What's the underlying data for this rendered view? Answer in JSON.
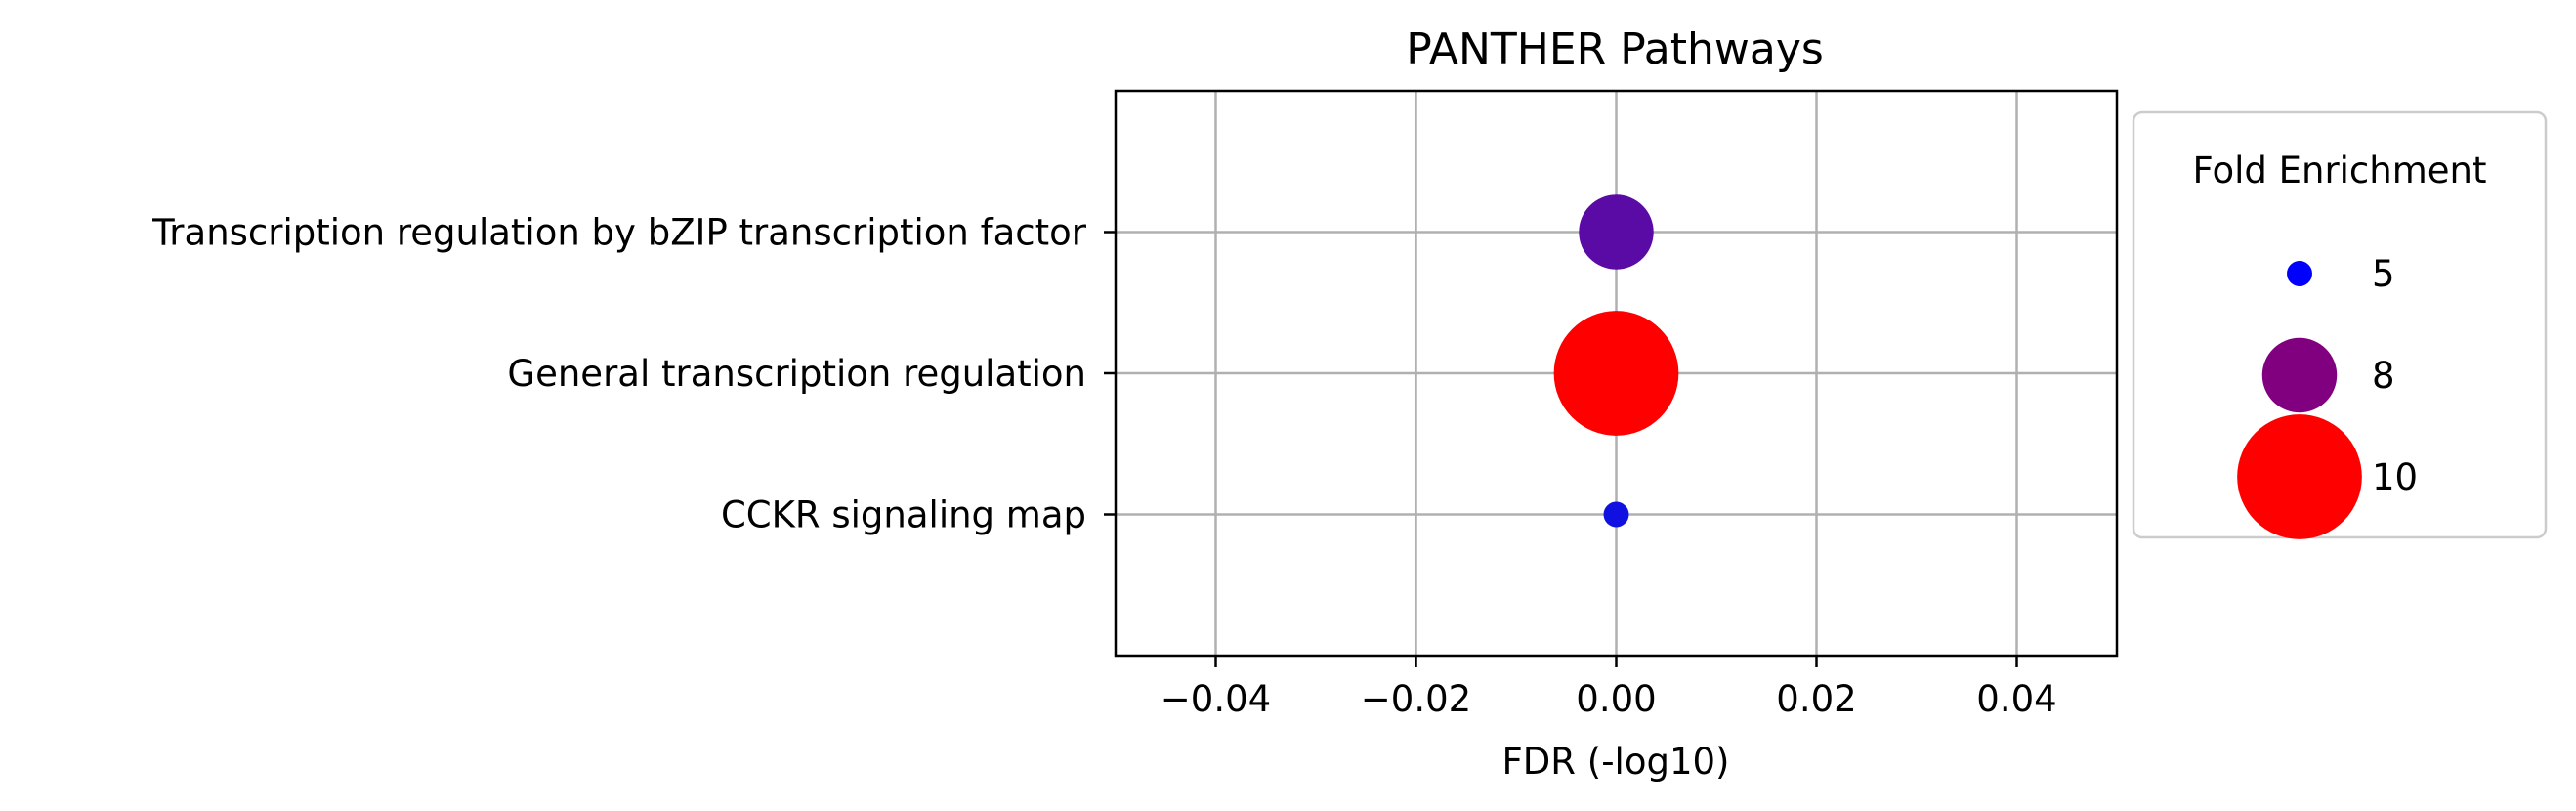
{
  "chart_data": {
    "type": "scatter",
    "title": "PANTHER Pathways",
    "xlabel": "FDR (-log10)",
    "ylabel": "",
    "xlim": [
      -0.05,
      0.05
    ],
    "xticks": [
      -0.04,
      -0.02,
      0.0,
      0.02,
      0.04
    ],
    "xtick_labels": [
      "−0.04",
      "−0.02",
      "0.00",
      "0.02",
      "0.04"
    ],
    "categories": [
      "Transcription regulation by bZIP transcription factor",
      "General transcription regulation",
      "CCKR signaling map"
    ],
    "points": [
      {
        "category": "Transcription regulation by bZIP transcription factor",
        "x": 0.0,
        "fold_enrichment": 8.0,
        "color": "#5a0aa5"
      },
      {
        "category": "General transcription regulation",
        "x": 0.0,
        "fold_enrichment": 10.0,
        "color": "#ff0000"
      },
      {
        "category": "CCKR signaling map",
        "x": 0.0,
        "fold_enrichment": 5.0,
        "color": "#1010e0"
      }
    ],
    "grid": true,
    "legend": {
      "title": "Fold Enrichment",
      "placement": "right-outside",
      "entries": [
        {
          "label": "5",
          "value": 5,
          "color": "#0000ff"
        },
        {
          "label": "8",
          "value": 8,
          "color": "#800080"
        },
        {
          "label": "10",
          "value": 10,
          "color": "#ff0000"
        }
      ]
    }
  }
}
